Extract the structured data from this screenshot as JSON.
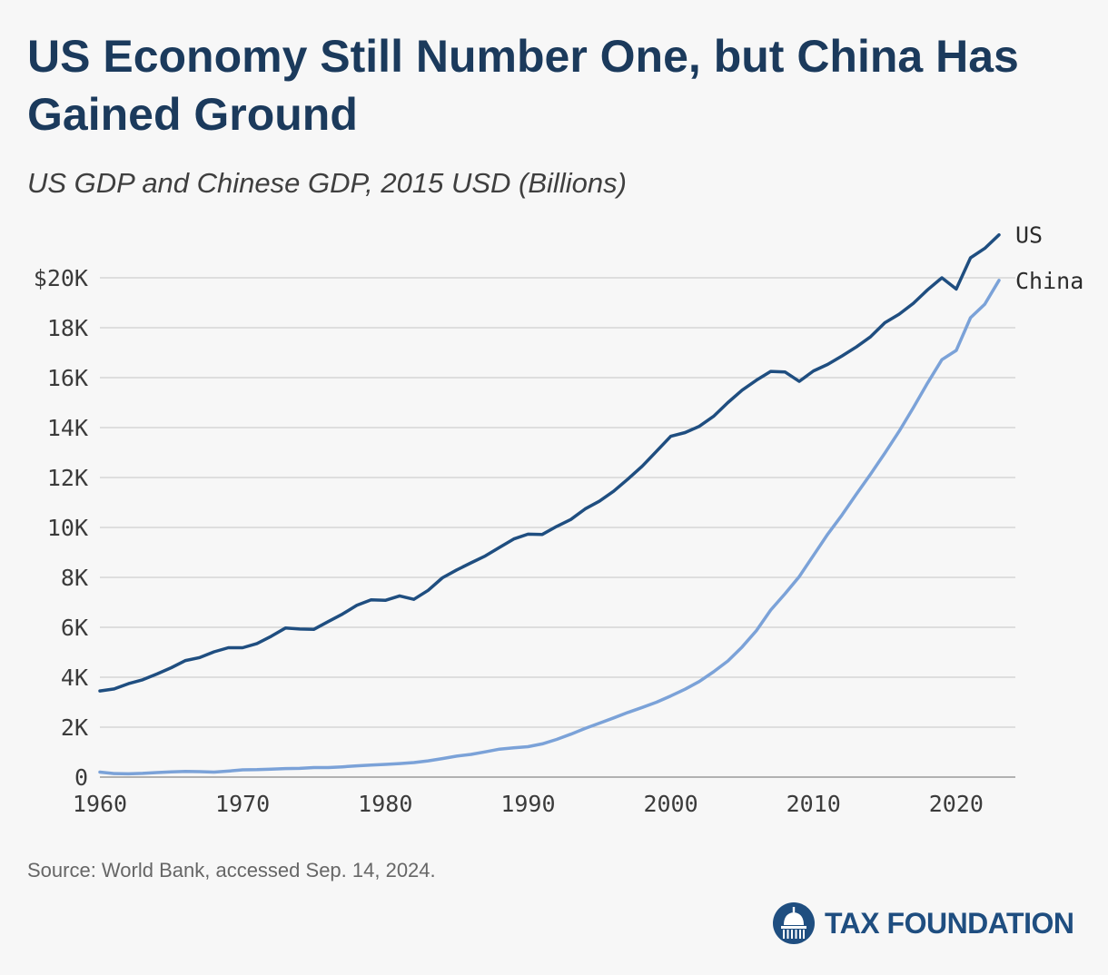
{
  "title": "US Economy Still Number One, but China Has Gained Ground",
  "subtitle": "US GDP and Chinese GDP, 2015 USD (Billions)",
  "source": "Source: World Bank, accessed Sep. 14, 2024.",
  "logo": {
    "text": "TAX FOUNDATION",
    "icon": "capitol-dome-icon"
  },
  "colors": {
    "title": "#1b3a5c",
    "us": "#1f4e80",
    "china": "#7ba2d8",
    "grid": "#d0d0d0",
    "logo": "#1f4e80"
  },
  "chart_data": {
    "type": "line",
    "xlabel": "",
    "ylabel": "",
    "xlim": [
      1960,
      2024
    ],
    "ylim": [
      0,
      22000
    ],
    "grid": true,
    "x_ticks": [
      1960,
      1970,
      1980,
      1990,
      2000,
      2010,
      2020
    ],
    "y_ticks": [
      {
        "value": 0,
        "label": "0"
      },
      {
        "value": 2000,
        "label": "2K"
      },
      {
        "value": 4000,
        "label": "4K"
      },
      {
        "value": 6000,
        "label": "6K"
      },
      {
        "value": 8000,
        "label": "8K"
      },
      {
        "value": 10000,
        "label": "10K"
      },
      {
        "value": 12000,
        "label": "12K"
      },
      {
        "value": 14000,
        "label": "14K"
      },
      {
        "value": 16000,
        "label": "16K"
      },
      {
        "value": 18000,
        "label": "18K"
      },
      {
        "value": 20000,
        "label": "$20K"
      }
    ],
    "x": [
      1960,
      1961,
      1962,
      1963,
      1964,
      1965,
      1966,
      1967,
      1968,
      1969,
      1970,
      1971,
      1972,
      1973,
      1974,
      1975,
      1976,
      1977,
      1978,
      1979,
      1980,
      1981,
      1982,
      1983,
      1984,
      1985,
      1986,
      1987,
      1988,
      1989,
      1990,
      1991,
      1992,
      1993,
      1994,
      1995,
      1996,
      1997,
      1998,
      1999,
      2000,
      2001,
      2002,
      2003,
      2004,
      2005,
      2006,
      2007,
      2008,
      2009,
      2010,
      2011,
      2012,
      2013,
      2014,
      2015,
      2016,
      2017,
      2018,
      2019,
      2020,
      2021,
      2022,
      2023
    ],
    "series": [
      {
        "name": "US",
        "values": [
          3450,
          3530,
          3740,
          3900,
          4130,
          4380,
          4670,
          4790,
          5020,
          5180,
          5180,
          5350,
          5640,
          5970,
          5930,
          5920,
          6230,
          6530,
          6880,
          7100,
          7080,
          7260,
          7120,
          7480,
          7980,
          8300,
          8580,
          8860,
          9200,
          9540,
          9730,
          9720,
          10040,
          10320,
          10740,
          11050,
          11450,
          11940,
          12450,
          13050,
          13650,
          13800,
          14050,
          14450,
          15000,
          15500,
          15900,
          16250,
          16230,
          15850,
          16270,
          16530,
          16870,
          17230,
          17640,
          18200,
          18540,
          18980,
          19520,
          20000,
          19550,
          20800,
          21180,
          21720
        ]
      },
      {
        "name": "China",
        "values": [
          200,
          140,
          130,
          150,
          180,
          210,
          230,
          220,
          200,
          240,
          290,
          300,
          320,
          340,
          350,
          380,
          380,
          410,
          450,
          480,
          510,
          540,
          580,
          650,
          740,
          840,
          910,
          1010,
          1120,
          1170,
          1220,
          1330,
          1510,
          1720,
          1950,
          2160,
          2370,
          2590,
          2790,
          3000,
          3250,
          3520,
          3830,
          4220,
          4650,
          5210,
          5870,
          6690,
          7340,
          8030,
          8880,
          9730,
          10500,
          11330,
          12140,
          12980,
          13850,
          14800,
          15790,
          16720,
          17090,
          18400,
          18940,
          19900
        ]
      }
    ]
  }
}
